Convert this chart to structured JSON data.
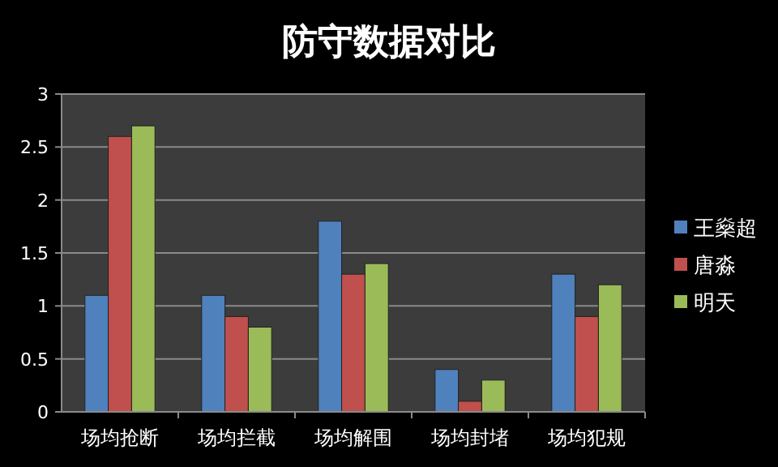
{
  "chart_data": {
    "type": "bar",
    "title": "防守数据对比",
    "categories": [
      "场均抢断",
      "场均拦截",
      "场均解围",
      "场均封堵",
      "场均犯规"
    ],
    "series": [
      {
        "name": "王燊超",
        "color": "#4f81bd",
        "values": [
          1.1,
          1.1,
          1.8,
          0.4,
          1.3
        ]
      },
      {
        "name": "唐淼",
        "color": "#c0504d",
        "values": [
          2.6,
          0.9,
          1.3,
          0.1,
          0.9
        ]
      },
      {
        "name": "明天",
        "color": "#9bbb59",
        "values": [
          2.7,
          0.8,
          1.4,
          0.3,
          1.2
        ]
      }
    ],
    "ylim": [
      0,
      3
    ],
    "yticks": [
      0,
      0.5,
      1,
      1.5,
      2,
      2.5,
      3
    ],
    "grid": "y",
    "legend": "right"
  }
}
